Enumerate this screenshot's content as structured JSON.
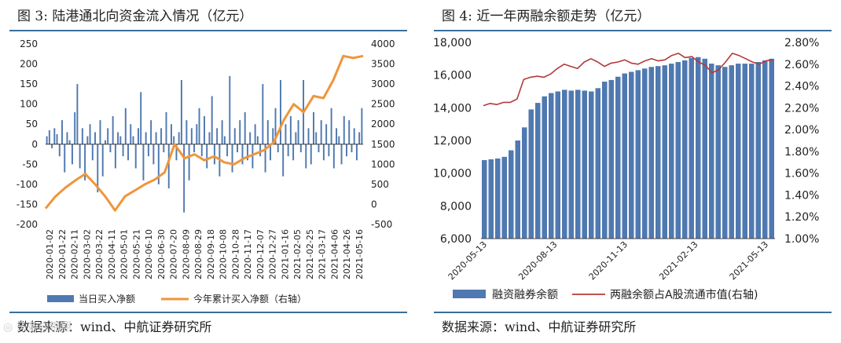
{
  "left_panel": {
    "title": "图 3: 陆港通北向资金流入情况（亿元）",
    "source": "数据来源：wind、中航证券研究所"
  },
  "right_panel": {
    "title": "图 4: 近一年两融余额走势（亿元）",
    "source": "数据来源：wind、中航证券研究所"
  },
  "watermark": "◎ 头条@锦翔",
  "colors": {
    "bar_blue": "#4f79b0",
    "line_orange": "#f0953a",
    "line_red": "#b43a3a",
    "rule": "#3a6f9a"
  },
  "chart_data": [
    {
      "type": "bar",
      "title": "",
      "ylim": [
        -200,
        250
      ],
      "y_ticks": [
        250,
        200,
        150,
        100,
        50,
        0,
        -50,
        -100,
        -150,
        -200
      ],
      "y2lim": [
        -500,
        4000
      ],
      "y2_ticks": [
        4000,
        3500,
        3000,
        2500,
        2000,
        1500,
        1000,
        500,
        0,
        -500
      ],
      "x_tick_labels": [
        "2020-01-02",
        "2020-01-22",
        "2020-02-11",
        "2020-03-02",
        "2020-03-22",
        "2020-04-11",
        "2020-05-01",
        "2020-05-21",
        "2020-06-10",
        "2020-06-30",
        "2020-07-20",
        "2020-08-09",
        "2020-08-29",
        "2020-09-18",
        "2020-10-08",
        "2020-10-28",
        "2020-11-17",
        "2020-12-07",
        "2020-12-27",
        "2021-01-16",
        "2021-02-05",
        "2021-02-25",
        "2021-03-17",
        "2021-04-06",
        "2021-04-26",
        "2021-05-16"
      ],
      "legend": "bottom",
      "series": [
        {
          "name": "当日买入净额",
          "kind": "bar",
          "axis": "left",
          "values": [
            20,
            35,
            -10,
            40,
            25,
            -30,
            60,
            -70,
            30,
            10,
            -50,
            80,
            150,
            -60,
            40,
            -90,
            20,
            50,
            -40,
            30,
            -120,
            60,
            -80,
            10,
            40,
            -20,
            70,
            -60,
            30,
            20,
            -30,
            90,
            -40,
            50,
            20,
            -60,
            40,
            130,
            -90,
            30,
            -30,
            60,
            -50,
            30,
            -100,
            40,
            -20,
            80,
            -110,
            50,
            20,
            -40,
            30,
            160,
            -170,
            60,
            -90,
            40,
            -20,
            50,
            90,
            -30,
            70,
            -60,
            30,
            120,
            -50,
            40,
            -80,
            60,
            20,
            -30,
            170,
            -70,
            40,
            -20,
            60,
            -50,
            80,
            -40,
            30,
            -60,
            50,
            20,
            -30,
            150,
            -70,
            60,
            -40,
            40,
            90,
            -20,
            160,
            -80,
            50,
            -30,
            70,
            -40,
            30,
            60,
            -20,
            160,
            -60,
            40,
            -50,
            80,
            30,
            -20,
            60,
            -40,
            50,
            -30,
            90,
            -60,
            40,
            20,
            -50,
            70,
            -30,
            60,
            -20,
            40,
            -40,
            30,
            90
          ]
        },
        {
          "name": "今年累计买入净额（右轴）",
          "kind": "line",
          "axis": "right",
          "values": [
            -100,
            200,
            420,
            600,
            760,
            500,
            200,
            -150,
            200,
            350,
            500,
            620,
            800,
            1500,
            1150,
            1250,
            1100,
            1200,
            1050,
            1000,
            1150,
            1250,
            1350,
            1550,
            2100,
            2500,
            2300,
            2700,
            2650,
            3100,
            3700,
            3650,
            3700
          ]
        }
      ]
    },
    {
      "type": "bar",
      "title": "",
      "ylim": [
        6000,
        18000
      ],
      "y_ticks": [
        "18,000",
        "16,000",
        "14,000",
        "12,000",
        "10,000",
        "8,000",
        "6,000"
      ],
      "y2lim": [
        1.0,
        2.8
      ],
      "y2_ticks": [
        "2.80%",
        "2.60%",
        "2.40%",
        "2.20%",
        "2.00%",
        "1.80%",
        "1.60%",
        "1.40%",
        "1.20%",
        "1.00%"
      ],
      "x_tick_labels": [
        "2020-05-13",
        "2020-08-13",
        "2020-11-13",
        "2021-02-13",
        "2021-05-13"
      ],
      "legend": "bottom",
      "series": [
        {
          "name": "融资融券余额",
          "kind": "bar",
          "axis": "left",
          "values": [
            10800,
            10850,
            10900,
            11000,
            11400,
            12000,
            12800,
            13900,
            14300,
            14700,
            14900,
            15000,
            15100,
            15050,
            15100,
            15050,
            15000,
            15200,
            15600,
            15700,
            15900,
            16100,
            16200,
            16300,
            16400,
            16500,
            16550,
            16600,
            16700,
            16800,
            16900,
            17050,
            17100,
            17000,
            16700,
            16600,
            16500,
            16600,
            16700,
            16700,
            16700,
            16800,
            16900,
            17000
          ]
        },
        {
          "name": "两融余额占A股流通市值(右轴)",
          "kind": "line",
          "axis": "right",
          "values": [
            2.22,
            2.24,
            2.23,
            2.25,
            2.25,
            2.28,
            2.46,
            2.48,
            2.49,
            2.48,
            2.51,
            2.56,
            2.6,
            2.58,
            2.56,
            2.62,
            2.65,
            2.62,
            2.58,
            2.61,
            2.62,
            2.64,
            2.61,
            2.6,
            2.63,
            2.65,
            2.63,
            2.64,
            2.68,
            2.7,
            2.66,
            2.67,
            2.62,
            2.59,
            2.52,
            2.55,
            2.62,
            2.7,
            2.68,
            2.65,
            2.62,
            2.6,
            2.63,
            2.64
          ]
        }
      ]
    }
  ]
}
